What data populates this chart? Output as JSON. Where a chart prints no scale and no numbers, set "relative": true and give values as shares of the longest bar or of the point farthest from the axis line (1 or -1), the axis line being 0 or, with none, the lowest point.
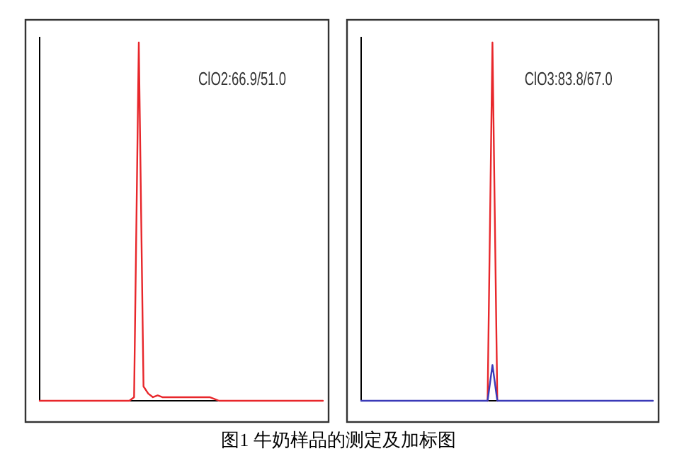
{
  "chart_data": [
    {
      "type": "line",
      "relative": true,
      "grid": false,
      "categories": [
        null,
        null,
        null,
        null,
        null,
        null,
        null,
        null,
        null,
        null,
        null,
        null,
        null,
        null,
        null,
        null,
        null,
        null,
        null,
        null,
        null,
        null,
        null,
        null,
        null,
        null,
        null,
        null,
        null,
        null,
        null,
        null,
        null,
        null,
        null,
        null,
        null,
        null,
        null,
        null,
        null,
        null,
        null,
        null,
        null,
        null,
        null,
        null,
        null,
        null,
        null,
        null,
        null,
        null,
        null,
        null,
        null,
        null,
        null,
        null,
        null
      ],
      "series": [
        {
          "color": "#e8272b",
          "values": [
            0,
            0,
            0,
            0,
            0,
            0,
            0,
            0,
            0,
            0,
            0,
            0,
            0,
            0,
            0,
            0,
            0,
            0,
            0,
            0,
            0.01,
            1,
            0.04,
            0.02,
            0.01,
            0.015,
            0.01,
            0.01,
            0.01,
            0.01,
            0.01,
            0.01,
            0.01,
            0.01,
            0.01,
            0.01,
            0.01,
            0.005,
            0,
            0,
            0,
            0,
            0,
            0,
            0,
            0,
            0,
            0,
            0,
            0,
            0,
            0,
            0,
            0,
            0,
            0,
            0,
            0,
            0,
            0,
            0
          ]
        }
      ],
      "annotations": [
        "ClO2:66.9/51.0",
        "图1 牛奶样品的测定及加标图"
      ]
    },
    {
      "type": "line",
      "relative": true,
      "grid": false,
      "categories": [
        null,
        null,
        null,
        null,
        null,
        null,
        null,
        null,
        null,
        null,
        null,
        null,
        null,
        null,
        null,
        null,
        null,
        null,
        null,
        null,
        null,
        null,
        null,
        null,
        null,
        null,
        null,
        null,
        null,
        null,
        null,
        null,
        null,
        null,
        null,
        null,
        null,
        null,
        null,
        null,
        null,
        null,
        null,
        null,
        null,
        null,
        null,
        null,
        null,
        null,
        null,
        null,
        null,
        null,
        null,
        null,
        null,
        null,
        null,
        null,
        null
      ],
      "series": [
        {
          "color": "#e8272b",
          "values": [
            null,
            null,
            null,
            null,
            null,
            null,
            null,
            null,
            null,
            null,
            null,
            null,
            null,
            null,
            null,
            null,
            null,
            null,
            null,
            null,
            null,
            null,
            null,
            null,
            null,
            null,
            0,
            1,
            0,
            null,
            null,
            null,
            null,
            null,
            null,
            null,
            null,
            null,
            null,
            null,
            null,
            null,
            null,
            null,
            null,
            null,
            null,
            null,
            null,
            null,
            null,
            null,
            null,
            null,
            null,
            null,
            null,
            null,
            null,
            null,
            null
          ]
        },
        {
          "color": "#3a3ab8",
          "values": [
            0,
            0,
            0,
            0,
            0,
            0,
            0,
            0,
            0,
            0,
            0,
            0,
            0,
            0,
            0,
            0,
            0,
            0,
            0,
            0,
            0,
            0,
            0,
            0,
            0,
            0,
            0,
            0.1,
            0,
            0,
            0,
            0,
            0,
            0,
            0,
            0,
            0,
            0,
            0,
            0,
            0,
            0,
            0,
            0,
            0,
            0,
            0,
            0,
            0,
            0,
            0,
            0,
            0,
            0,
            0,
            0,
            0,
            0,
            0,
            0,
            0
          ]
        }
      ],
      "annotations": [
        "ClO3:83.8/67.0"
      ]
    }
  ]
}
